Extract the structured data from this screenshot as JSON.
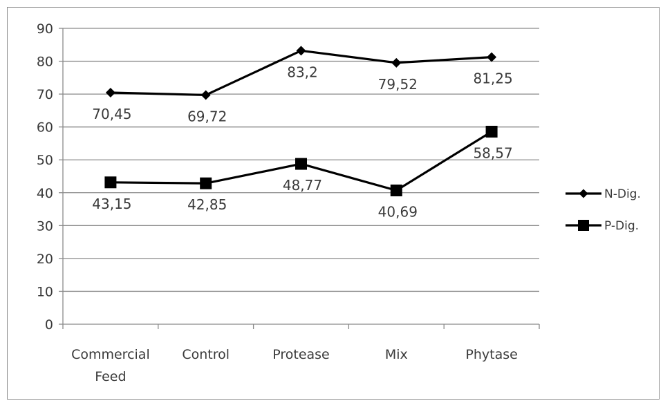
{
  "chart_data": {
    "type": "line",
    "categories": [
      [
        "Commercial",
        "Feed"
      ],
      [
        "Control"
      ],
      [
        "Protease"
      ],
      [
        "Mix"
      ],
      [
        "Phytase"
      ]
    ],
    "ylim": [
      0,
      90
    ],
    "yticks": [
      "0",
      "10",
      "20",
      "30",
      "40",
      "50",
      "60",
      "70",
      "80",
      "90"
    ],
    "grid": true,
    "legend_position": "right",
    "series": [
      {
        "name": "N-Dig.",
        "marker": "diamond",
        "values": [
          70.45,
          69.72,
          83.2,
          79.52,
          81.25
        ],
        "labels": [
          "70,45",
          "69,72",
          "83,2",
          "79,52",
          "81,25"
        ]
      },
      {
        "name": "P-Dig.",
        "marker": "square",
        "values": [
          43.15,
          42.85,
          48.77,
          40.69,
          58.57
        ],
        "labels": [
          "43,15",
          "42,85",
          "48,77",
          "40,69",
          "58,57"
        ]
      }
    ]
  },
  "colors": {
    "series_line": "#000000",
    "gridline": "#8a8a8a",
    "axis": "#8a8a8a",
    "text": "#3a3a3a",
    "frame_border": "#8c8c8c"
  }
}
